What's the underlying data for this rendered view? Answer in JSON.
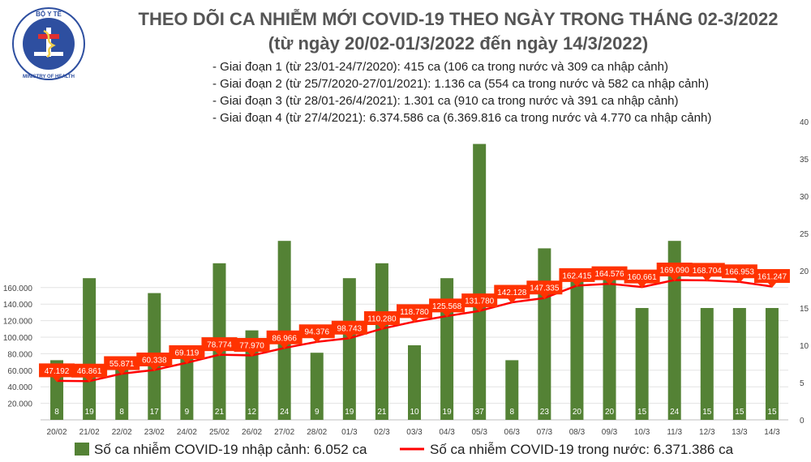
{
  "header": {
    "logo_text_top": "BỘ Y TẾ",
    "logo_text_bottom": "MINISTRY OF HEALTH",
    "title": "THEO DÕI CA NHIỄM MỚI COVID-19 THEO NGÀY TRONG THÁNG 02-3/2022",
    "subtitle": "(từ ngày 20/02-01/3/2022 đến ngày 14/3/2022)",
    "phases": [
      "- Giai đoạn 1 (từ 23/01-24/7/2020): 415 ca (106 ca trong nước và 309 ca nhập cảnh)",
      "- Giai đoạn 2 (từ 25/7/2020-27/01/2021): 1.136 ca (554 ca trong nước và 582 ca nhập cảnh)",
      "- Giai đoạn 3 (từ 28/01-26/4/2021): 1.301 ca (910 ca trong nước và 391 ca nhập cảnh)",
      "- Giai đoạn 4 (từ 27/4/2021): 6.374.586 ca (6.369.816 ca trong nước và 4.770 ca nhập cảnh)"
    ]
  },
  "colors": {
    "bar": "#548235",
    "bar_label": "#ffffff",
    "line": "#ff0000",
    "callout": "#ff3300",
    "callout_text": "#ffffff",
    "axis_text": "#444444",
    "grid": "#e3e3e3"
  },
  "chart_data": {
    "type": "bar",
    "categories": [
      "20/02",
      "21/02",
      "22/02",
      "23/02",
      "24/02",
      "25/02",
      "26/02",
      "27/02",
      "28/02",
      "01/3",
      "02/3",
      "03/3",
      "04/3",
      "05/3",
      "06/3",
      "07/3",
      "08/3",
      "09/3",
      "10/3",
      "11/3",
      "12/3",
      "13/3",
      "14/3"
    ],
    "series": [
      {
        "name": "Số ca nhiễm COVID-19 nhập cảnh: 6.052 ca",
        "kind": "bar",
        "axis": "right",
        "values": [
          8,
          19,
          8,
          17,
          9,
          21,
          12,
          24,
          9,
          19,
          21,
          10,
          19,
          37,
          8,
          23,
          20,
          20,
          15,
          24,
          15,
          15,
          15
        ],
        "labels": [
          "8",
          "19",
          "8",
          "17",
          "9",
          "21",
          "12",
          "24",
          "9",
          "19",
          "21",
          "10",
          "19",
          "37",
          "8",
          "23",
          "20",
          "20",
          "15",
          "24",
          "15",
          "15",
          "15"
        ]
      },
      {
        "name": "Số ca nhiễm COVID-19 trong nước: 6.371.386 ca",
        "kind": "line",
        "axis": "left",
        "values": [
          47192,
          46861,
          55871,
          60338,
          69119,
          78774,
          77970,
          86966,
          94376,
          98743,
          110280,
          118780,
          125568,
          131780,
          142128,
          147335,
          162415,
          164576,
          160661,
          169090,
          168704,
          166953,
          161247
        ],
        "labels": [
          "47.192",
          "46.861",
          "55.871",
          "60.338",
          "69.119",
          "78.774",
          "77.970",
          "86.966",
          "94.376",
          "98.743",
          "110.280",
          "118.780",
          "125.568",
          "131.780",
          "142.128",
          "147.335",
          "162.415",
          "164.576",
          "160.661",
          "169.090",
          "168.704",
          "166.953",
          "161.247"
        ]
      }
    ],
    "y_left": {
      "min": 0,
      "max": 180000,
      "ticks": [
        20000,
        40000,
        60000,
        80000,
        100000,
        120000,
        140000,
        160000
      ],
      "tick_labels": [
        "20.000",
        "40.000",
        "60.000",
        "80.000",
        "100.000",
        "120.000",
        "140.000",
        "160.000"
      ]
    },
    "y_right": {
      "min": 0,
      "max": 40,
      "ticks": [
        0,
        5,
        10,
        15,
        20,
        25,
        30,
        35,
        40
      ],
      "tick_labels": [
        "0",
        "5",
        "10",
        "15",
        "20",
        "25",
        "30",
        "35",
        "40"
      ]
    },
    "grid": true,
    "legend_position": "bottom"
  }
}
